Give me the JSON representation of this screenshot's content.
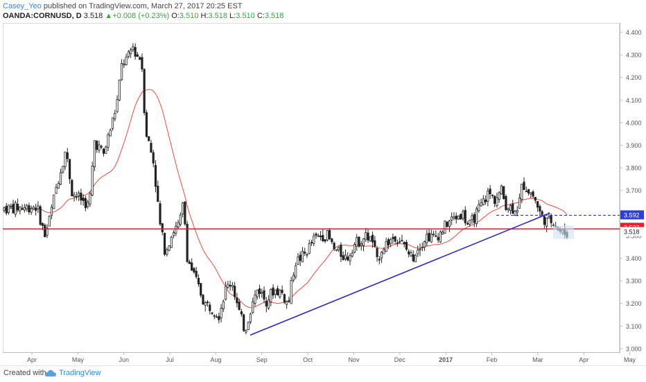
{
  "header": {
    "author": "Casey_Yeo",
    "published_text": " published on TradingView.com, March 27, 2017 20:25 EST",
    "symbol": "OANDA:CORNUSD, D",
    "last": "3.518",
    "change_arrow": "▲",
    "change": "+0.008 (+0.23%)",
    "open_label": "O:",
    "open": "3.510",
    "high_label": "H:",
    "high": "3.518",
    "low_label": "L:",
    "low": "3.510",
    "close_label": "C:",
    "close": "3.518"
  },
  "footer": {
    "created_with": "Created with",
    "brand": "TradingView",
    "brand_icon": "tradingview-cloud-icon"
  },
  "colors": {
    "up": "#3aa543",
    "ma": "#e74c3c",
    "trendline": "#2727c8",
    "horizontal": "#e8202a",
    "price_badge_blue": "#2e3fd6",
    "price_badge_red": "#e8202a",
    "current_badge": "#cfe3f1",
    "candle": "#222222"
  },
  "chart_data": {
    "type": "candlestick",
    "ylim": [
      3.0,
      4.43
    ],
    "y_ticks": [
      "4.400",
      "4.300",
      "4.200",
      "4.100",
      "4.000",
      "3.900",
      "3.800",
      "3.700",
      "3.600",
      "3.500",
      "3.400",
      "3.300",
      "3.200",
      "3.100",
      "3.000"
    ],
    "x_ticks": [
      "Apr",
      "May",
      "Jun",
      "Jul",
      "Aug",
      "Sep",
      "Oct",
      "Nov",
      "Dec",
      "2017",
      "Feb",
      "Mar",
      "Apr",
      "May"
    ],
    "x_tick_bold": [
      false,
      false,
      false,
      false,
      false,
      false,
      false,
      false,
      false,
      true,
      false,
      false,
      false,
      false
    ],
    "price_path": [
      {
        "t": 0.0,
        "p": 3.62
      },
      {
        "t": 5.0,
        "p": 3.63
      },
      {
        "t": 6.2,
        "p": 3.5
      },
      {
        "t": 7.0,
        "p": 3.58
      },
      {
        "t": 8.0,
        "p": 3.72
      },
      {
        "t": 9.4,
        "p": 3.88
      },
      {
        "t": 10.4,
        "p": 3.69
      },
      {
        "t": 11.8,
        "p": 3.66
      },
      {
        "t": 13.0,
        "p": 3.63
      },
      {
        "t": 13.8,
        "p": 3.92
      },
      {
        "t": 15.2,
        "p": 3.86
      },
      {
        "t": 16.4,
        "p": 3.99
      },
      {
        "t": 17.2,
        "p": 4.08
      },
      {
        "t": 18.0,
        "p": 4.26
      },
      {
        "t": 19.0,
        "p": 4.29
      },
      {
        "t": 19.6,
        "p": 4.34
      },
      {
        "t": 20.2,
        "p": 4.3
      },
      {
        "t": 21.0,
        "p": 4.28
      },
      {
        "t": 21.6,
        "p": 3.97
      },
      {
        "t": 22.8,
        "p": 3.83
      },
      {
        "t": 23.8,
        "p": 3.55
      },
      {
        "t": 24.6,
        "p": 3.43
      },
      {
        "t": 25.8,
        "p": 3.52
      },
      {
        "t": 26.8,
        "p": 3.55
      },
      {
        "t": 27.4,
        "p": 3.65
      },
      {
        "t": 28.0,
        "p": 3.4
      },
      {
        "t": 29.6,
        "p": 3.28
      },
      {
        "t": 30.6,
        "p": 3.2
      },
      {
        "t": 31.8,
        "p": 3.18
      },
      {
        "t": 32.8,
        "p": 3.15
      },
      {
        "t": 33.8,
        "p": 3.26
      },
      {
        "t": 34.8,
        "p": 3.3
      },
      {
        "t": 35.8,
        "p": 3.17
      },
      {
        "t": 36.8,
        "p": 3.08
      },
      {
        "t": 37.6,
        "p": 3.17
      },
      {
        "t": 38.8,
        "p": 3.27
      },
      {
        "t": 40.0,
        "p": 3.21
      },
      {
        "t": 41.2,
        "p": 3.26
      },
      {
        "t": 42.4,
        "p": 3.25
      },
      {
        "t": 43.4,
        "p": 3.19
      },
      {
        "t": 44.4,
        "p": 3.38
      },
      {
        "t": 46.0,
        "p": 3.42
      },
      {
        "t": 47.2,
        "p": 3.48
      },
      {
        "t": 48.4,
        "p": 3.5
      },
      {
        "t": 49.4,
        "p": 3.5
      },
      {
        "t": 50.4,
        "p": 3.44
      },
      {
        "t": 51.4,
        "p": 3.42
      },
      {
        "t": 52.4,
        "p": 3.4
      },
      {
        "t": 53.4,
        "p": 3.46
      },
      {
        "t": 54.4,
        "p": 3.48
      },
      {
        "t": 55.4,
        "p": 3.5
      },
      {
        "t": 56.4,
        "p": 3.47
      },
      {
        "t": 57.0,
        "p": 3.38
      },
      {
        "t": 57.6,
        "p": 3.44
      },
      {
        "t": 58.6,
        "p": 3.47
      },
      {
        "t": 59.8,
        "p": 3.5
      },
      {
        "t": 60.4,
        "p": 3.48
      },
      {
        "t": 61.4,
        "p": 3.44
      },
      {
        "t": 62.4,
        "p": 3.4
      },
      {
        "t": 63.0,
        "p": 3.44
      },
      {
        "t": 63.8,
        "p": 3.47
      },
      {
        "t": 64.6,
        "p": 3.5
      },
      {
        "t": 65.4,
        "p": 3.49
      },
      {
        "t": 66.6,
        "p": 3.51
      },
      {
        "t": 67.8,
        "p": 3.56
      },
      {
        "t": 69.0,
        "p": 3.58
      },
      {
        "t": 70.0,
        "p": 3.6
      },
      {
        "t": 71.0,
        "p": 3.54
      },
      {
        "t": 72.0,
        "p": 3.59
      },
      {
        "t": 73.0,
        "p": 3.64
      },
      {
        "t": 74.0,
        "p": 3.69
      },
      {
        "t": 75.0,
        "p": 3.66
      },
      {
        "t": 76.0,
        "p": 3.7
      },
      {
        "t": 76.6,
        "p": 3.64
      },
      {
        "t": 77.6,
        "p": 3.62
      },
      {
        "t": 78.6,
        "p": 3.63
      },
      {
        "t": 79.2,
        "p": 3.73
      },
      {
        "t": 80.2,
        "p": 3.7
      },
      {
        "t": 81.0,
        "p": 3.67
      },
      {
        "t": 82.0,
        "p": 3.59
      },
      {
        "t": 83.0,
        "p": 3.56
      },
      {
        "t": 84.0,
        "p": 3.57
      },
      {
        "t": 84.6,
        "p": 3.53
      },
      {
        "t": 85.3,
        "p": 3.51
      },
      {
        "t": 86.0,
        "p": 3.51
      }
    ],
    "trendline": {
      "x1": 37.6,
      "y1": 3.06,
      "x2": 83.4,
      "y2": 3.6
    },
    "horizontal_level": 3.53,
    "dashed_level": {
      "x1": 75.2,
      "x2": 90.0,
      "y": 3.59
    },
    "price_labels": {
      "blue": "3.592",
      "red": "3.537",
      "current": "3.518"
    }
  }
}
